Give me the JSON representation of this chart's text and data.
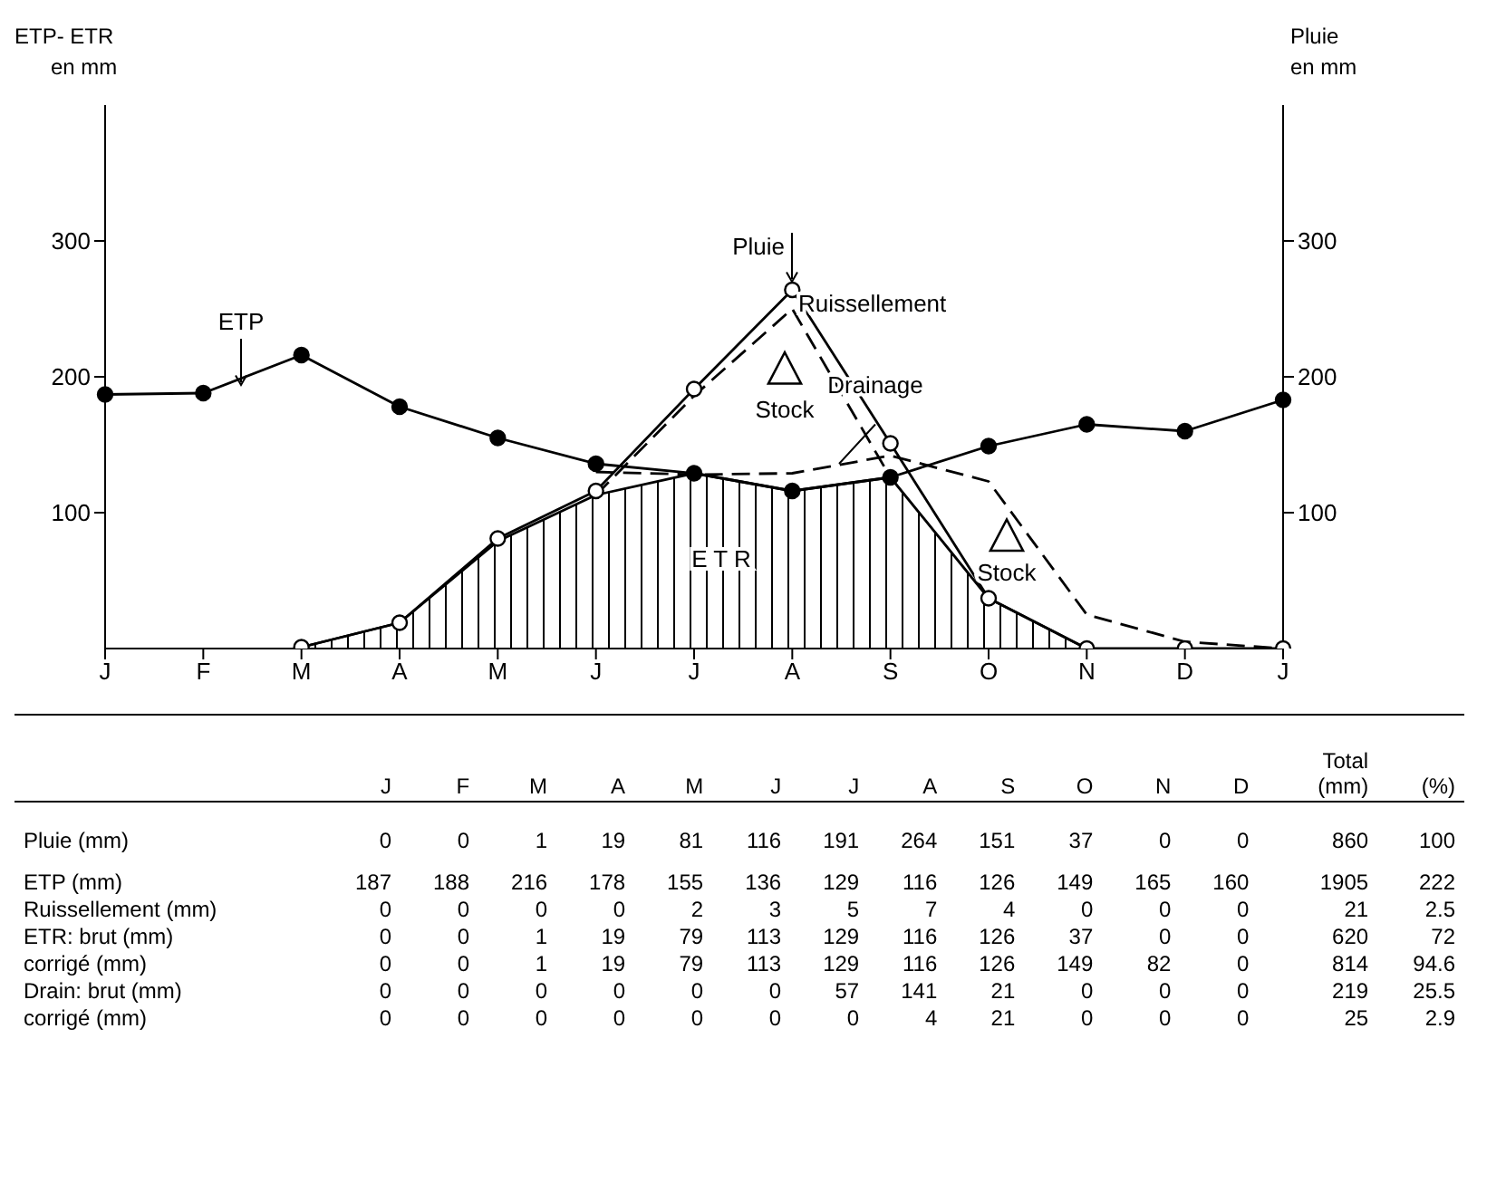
{
  "chart_data": [
    {
      "type": "line",
      "categories": [
        "J",
        "F",
        "M",
        "A",
        "M",
        "J",
        "J",
        "A",
        "S",
        "O",
        "N",
        "D",
        "J"
      ],
      "ylabel": "ETP- ETR\nen mm",
      "y2label": "Pluie\nen mm",
      "ylim": [
        0,
        400
      ],
      "yticks": [
        100,
        200,
        300
      ],
      "y2lim": [
        0,
        400
      ],
      "y2ticks": [
        100,
        200,
        300
      ],
      "annotations": [
        "Ruissellement",
        "Stock",
        "Drainage",
        "Stock",
        "E T R"
      ],
      "series": [
        {
          "name": "ETP",
          "color": "#000000",
          "marker": "circle",
          "line_style": "solid",
          "values": [
            187,
            188,
            216,
            178,
            155,
            136,
            129,
            116,
            126,
            149,
            165,
            160,
            183
          ]
        },
        {
          "name": "Pluie",
          "color": "#000000",
          "marker": "circle",
          "line_style": "solid",
          "values": [
            null,
            null,
            1,
            19,
            81,
            116,
            191,
            264,
            151,
            37,
            0,
            0,
            0
          ]
        },
        {
          "type": "area",
          "color": "#000000",
          "marker": "none",
          "values": [
            null,
            null,
            1,
            19,
            79,
            113,
            129,
            116,
            126,
            37,
            0,
            null,
            null
          ]
        },
        {
          "color": "#000000",
          "marker": "none",
          "line_style": "dashed",
          "values": [
            null,
            null,
            null,
            null,
            null,
            113,
            186,
            250,
            126,
            null,
            null,
            null,
            null
          ]
        },
        {
          "color": "#000000",
          "marker": "none",
          "line_style": "dashed",
          "values": [
            null,
            null,
            null,
            null,
            null,
            130,
            128,
            129,
            142,
            123,
            25,
            5,
            0
          ]
        }
      ]
    },
    {
      "type": "other",
      "categories": [
        "J",
        "F",
        "M",
        "A",
        "M",
        "J",
        "J",
        "A",
        "S",
        "O",
        "N",
        "D",
        "Total (mm)",
        "(%)"
      ],
      "data_labels": true,
      "series": [
        {
          "name": "Pluie (mm)",
          "values": [
            0,
            0,
            1,
            19,
            81,
            116,
            191,
            264,
            151,
            37,
            0,
            0,
            860,
            100
          ]
        },
        {
          "name": "ETP (mm)",
          "values": [
            187,
            188,
            216,
            178,
            155,
            136,
            129,
            116,
            126,
            149,
            165,
            160,
            1905,
            222
          ]
        },
        {
          "name": "Ruissellement (mm)",
          "values": [
            0,
            0,
            0,
            0,
            2,
            3,
            5,
            7,
            4,
            0,
            0,
            0,
            21,
            2.5
          ]
        },
        {
          "name": "ETR: brut (mm)",
          "values": [
            0,
            0,
            1,
            19,
            79,
            113,
            129,
            116,
            126,
            37,
            0,
            0,
            620,
            72
          ]
        },
        {
          "name": "corrigé (mm)",
          "values": [
            0,
            0,
            1,
            19,
            79,
            113,
            129,
            116,
            126,
            149,
            82,
            0,
            814,
            94.6
          ]
        },
        {
          "name": "Drain: brut (mm)",
          "values": [
            0,
            0,
            0,
            0,
            0,
            0,
            57,
            141,
            21,
            0,
            0,
            0,
            219,
            25.5
          ]
        },
        {
          "name": "corrigé (mm)",
          "values": [
            0,
            0,
            0,
            0,
            0,
            0,
            0,
            4,
            21,
            0,
            0,
            0,
            25,
            2.9
          ]
        }
      ]
    }
  ]
}
